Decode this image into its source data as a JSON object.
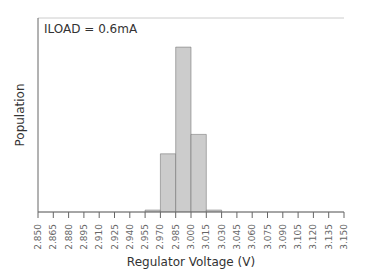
{
  "chart_data": {
    "type": "histogram",
    "xlabel": "Regulator Voltage (V)",
    "ylabel": "Population",
    "annotation": "ILOAD = 0.6mA",
    "bins": [
      2.85,
      2.865,
      2.88,
      2.895,
      2.91,
      2.925,
      2.94,
      2.955,
      2.97,
      2.985,
      3.0,
      3.015,
      3.03,
      3.045,
      3.06,
      3.075,
      3.09,
      3.105,
      3.12,
      3.135,
      3.15
    ],
    "values": [
      0,
      0,
      0,
      0,
      0,
      0,
      0,
      1,
      30,
      85,
      40,
      1,
      0,
      0,
      0,
      0,
      0,
      0,
      0,
      0
    ],
    "color": "#cccccc",
    "xlim": [
      2.85,
      3.15
    ],
    "ylim": [
      0,
      100
    ],
    "xticks": [
      {
        "value": 2.85,
        "label": "2.850"
      },
      {
        "value": 2.865,
        "label": "2.865"
      },
      {
        "value": 2.88,
        "label": "2.880"
      },
      {
        "value": 2.895,
        "label": "2.895"
      },
      {
        "value": 2.91,
        "label": "2.910"
      },
      {
        "value": 2.925,
        "label": "2.925"
      },
      {
        "value": 2.94,
        "label": "2.940"
      },
      {
        "value": 2.955,
        "label": "2.955"
      },
      {
        "value": 2.97,
        "label": "2.970"
      },
      {
        "value": 2.985,
        "label": "2.985"
      },
      {
        "value": 3.0,
        "label": "3.000"
      },
      {
        "value": 3.015,
        "label": "3.015"
      },
      {
        "value": 3.03,
        "label": "3.030"
      },
      {
        "value": 3.045,
        "label": "3.045"
      },
      {
        "value": 3.06,
        "label": "3.060"
      },
      {
        "value": 3.075,
        "label": "3.075"
      },
      {
        "value": 3.09,
        "label": "3.090"
      },
      {
        "value": 3.105,
        "label": "3.105"
      },
      {
        "value": 3.12,
        "label": "3.120"
      },
      {
        "value": 3.135,
        "label": "3.135"
      },
      {
        "value": 3.15,
        "label": "3.150"
      }
    ],
    "yticks": [
      0,
      10,
      20,
      30,
      40,
      50,
      60,
      70,
      80,
      90,
      100
    ],
    "grid": true,
    "tick_labels": "x"
  }
}
